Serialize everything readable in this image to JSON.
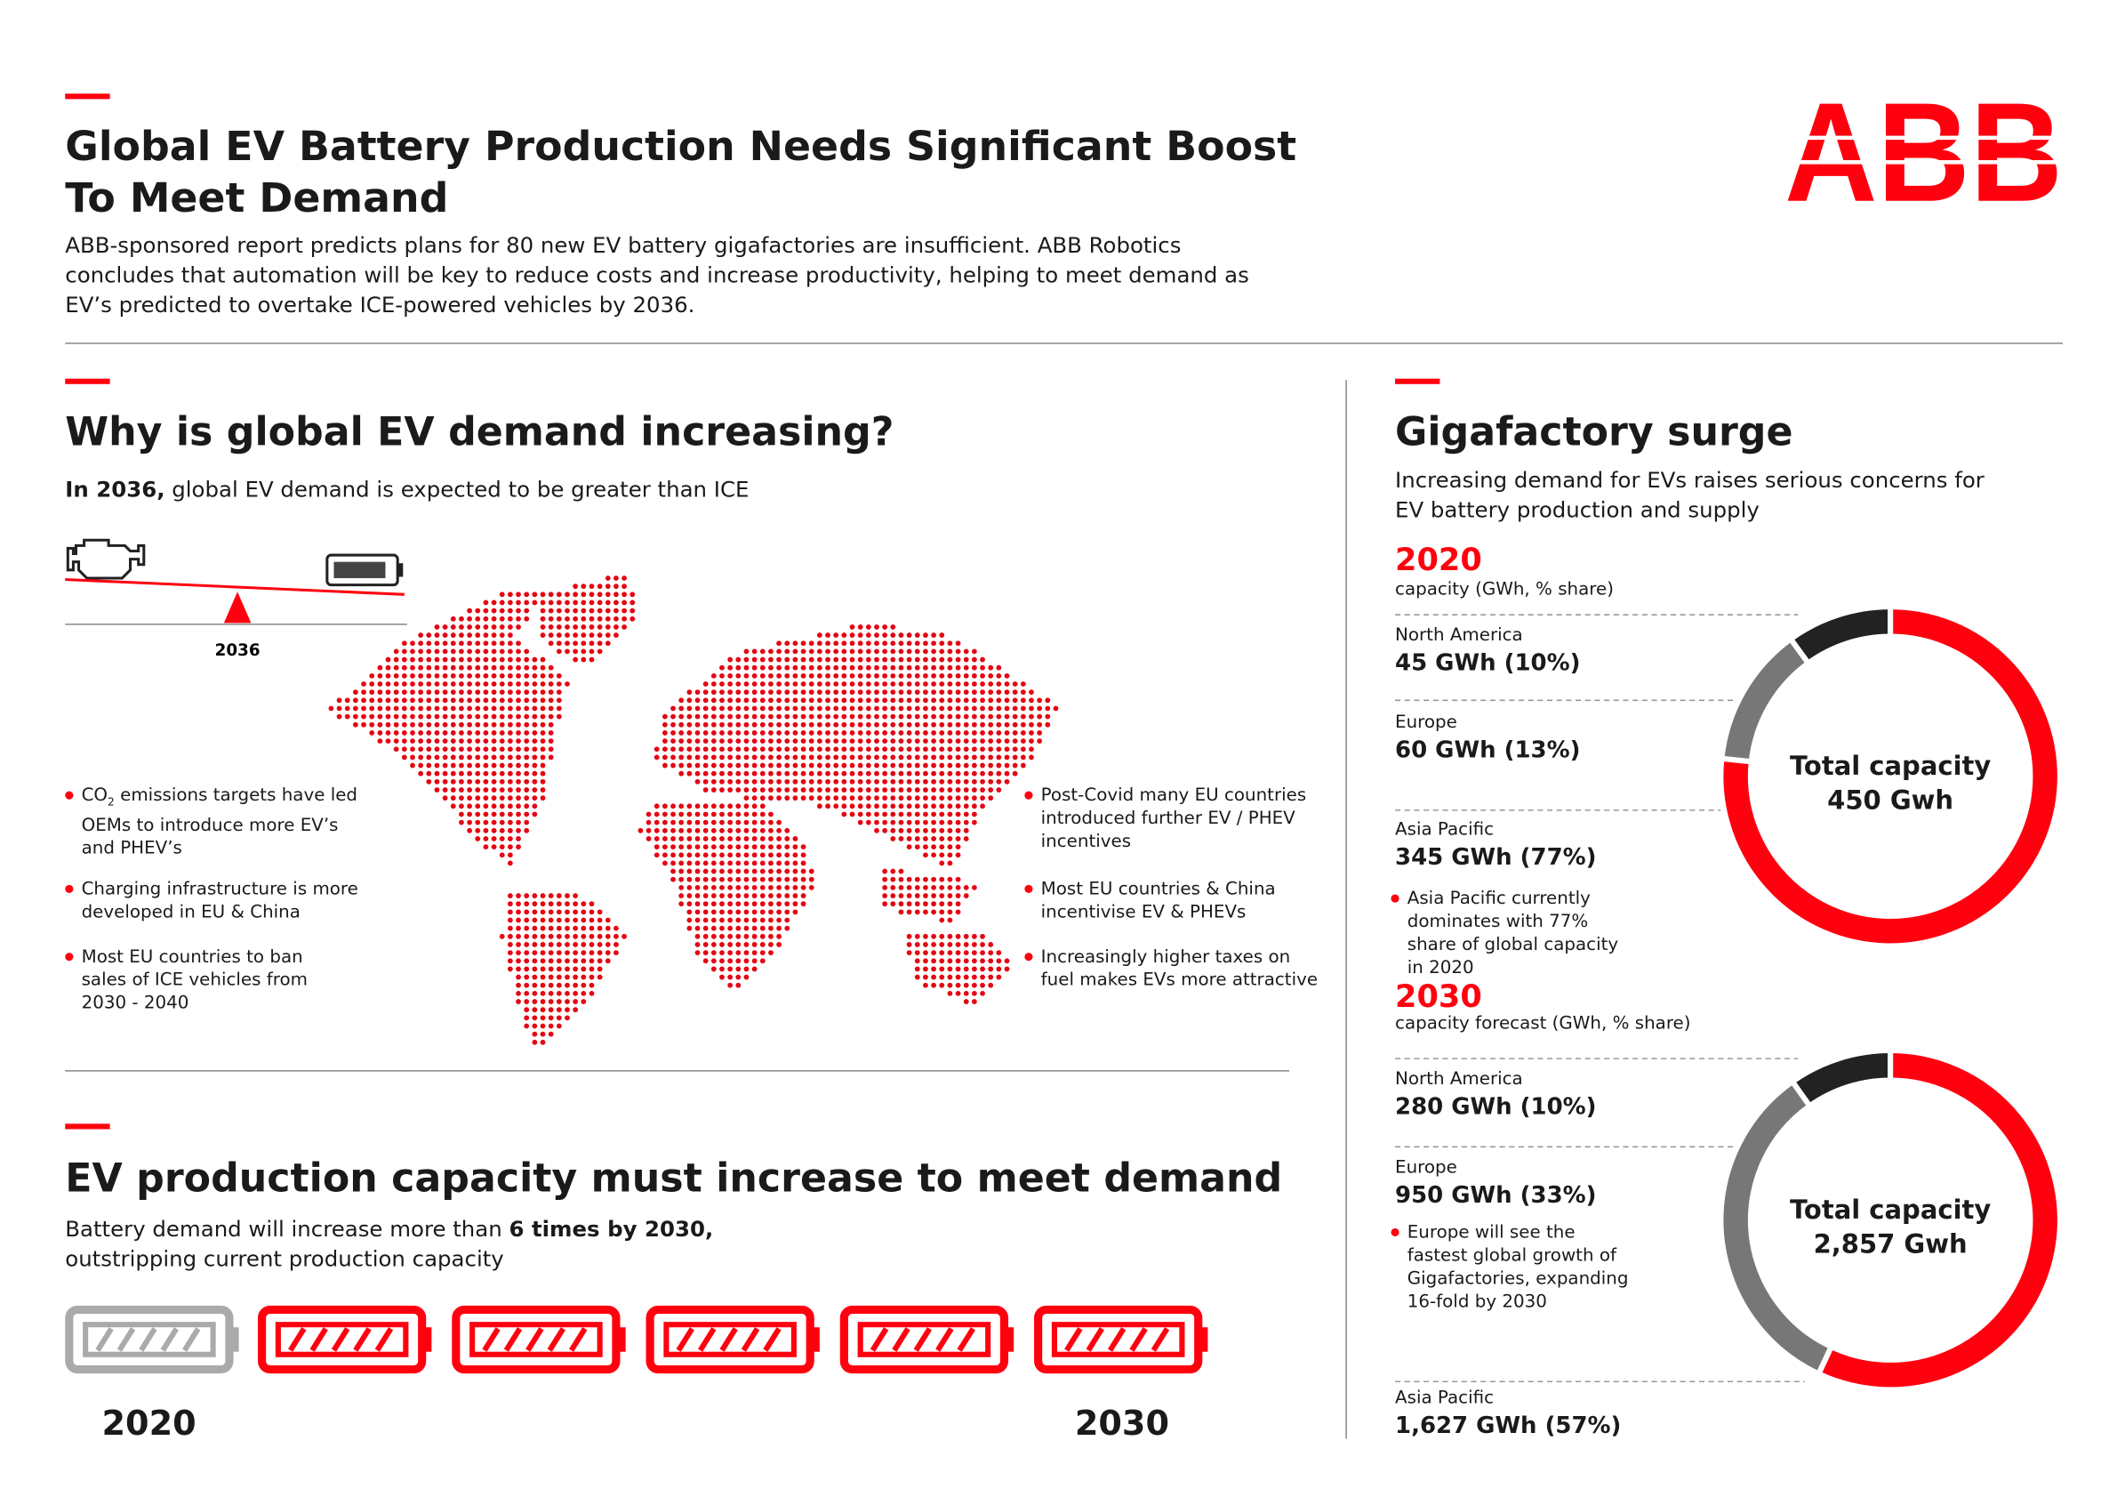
{
  "header": {
    "title": "Global EV Battery Production Needs Significant Boost To Meet Demand",
    "intro": "ABB-sponsored report predicts plans for 80 new EV battery gigafactories are insufficient. ABB Robotics concludes that automation will be key to reduce costs and increase productivity, helping to meet demand as EV’s predicted to overtake ICE-powered vehicles by 2036.",
    "logo": "ABB"
  },
  "demand": {
    "title": "Why is global EV demand increasing?",
    "lead_bold": "In 2036,",
    "lead_rest": "global EV demand is expected to be greater than ICE",
    "scale_label": "2036",
    "co2_point": {
      "before": "CO",
      "subscript": "2",
      "after": "emissions targets have led OEMs to introduce more EV’s and PHEV’s"
    },
    "left_points": [
      "Charging infrastructure is more developed in EU & China",
      "Most EU countries to ban sales of ICE vehicles from 2030 - 2040"
    ],
    "right_points": [
      "Post-Covid many EU countries introduced further EV / PHEV incentives",
      "Most EU countries & China incentivise EV & PHEVs",
      "Increasingly higher taxes on fuel makes EVs more attractive"
    ]
  },
  "production": {
    "title": "EV production capacity must increase to meet demand",
    "text_start": "Battery demand will increase more than",
    "text_bold": "6 times by 2030,",
    "text_end": "outstripping current production capacity",
    "start_label": "2020",
    "end_label": "2030"
  },
  "gigafactory": {
    "title": "Gigafactory surge",
    "subtitle": "Increasing demand for EVs raises serious concerns for EV battery production and supply"
  },
  "chart_data": [
    {
      "type": "pie",
      "title": "2020",
      "subtitle": "capacity (GWh, % share)",
      "categories": [
        "North America",
        "Europe",
        "Asia Pacific"
      ],
      "values": [
        45,
        60,
        345
      ],
      "value_labels": [
        "45 GWh (10%)",
        "60 GWh (13%)",
        "345 GWh (77%)"
      ],
      "colors": [
        "#222222",
        "#777777",
        "#ff000f"
      ],
      "center_label": [
        "Total capacity",
        "450 Gwh"
      ],
      "note": "Asia Pacific currently dominates with 77% share of global capacity in 2020"
    },
    {
      "type": "pie",
      "title": "2030",
      "subtitle": "capacity forecast (GWh, % share)",
      "categories": [
        "North America",
        "Europe",
        "Asia Pacific"
      ],
      "values": [
        280,
        950,
        1627
      ],
      "value_labels": [
        "280 GWh (10%)",
        "950 GWh (33%)",
        "1,627 GWh (57%)"
      ],
      "colors": [
        "#222222",
        "#777777",
        "#ff000f"
      ],
      "center_label": [
        "Total capacity",
        "2,857 Gwh"
      ],
      "note": "Europe will see the fastest global growth of Gigafactories, expanding 16-fold by 2030"
    }
  ]
}
